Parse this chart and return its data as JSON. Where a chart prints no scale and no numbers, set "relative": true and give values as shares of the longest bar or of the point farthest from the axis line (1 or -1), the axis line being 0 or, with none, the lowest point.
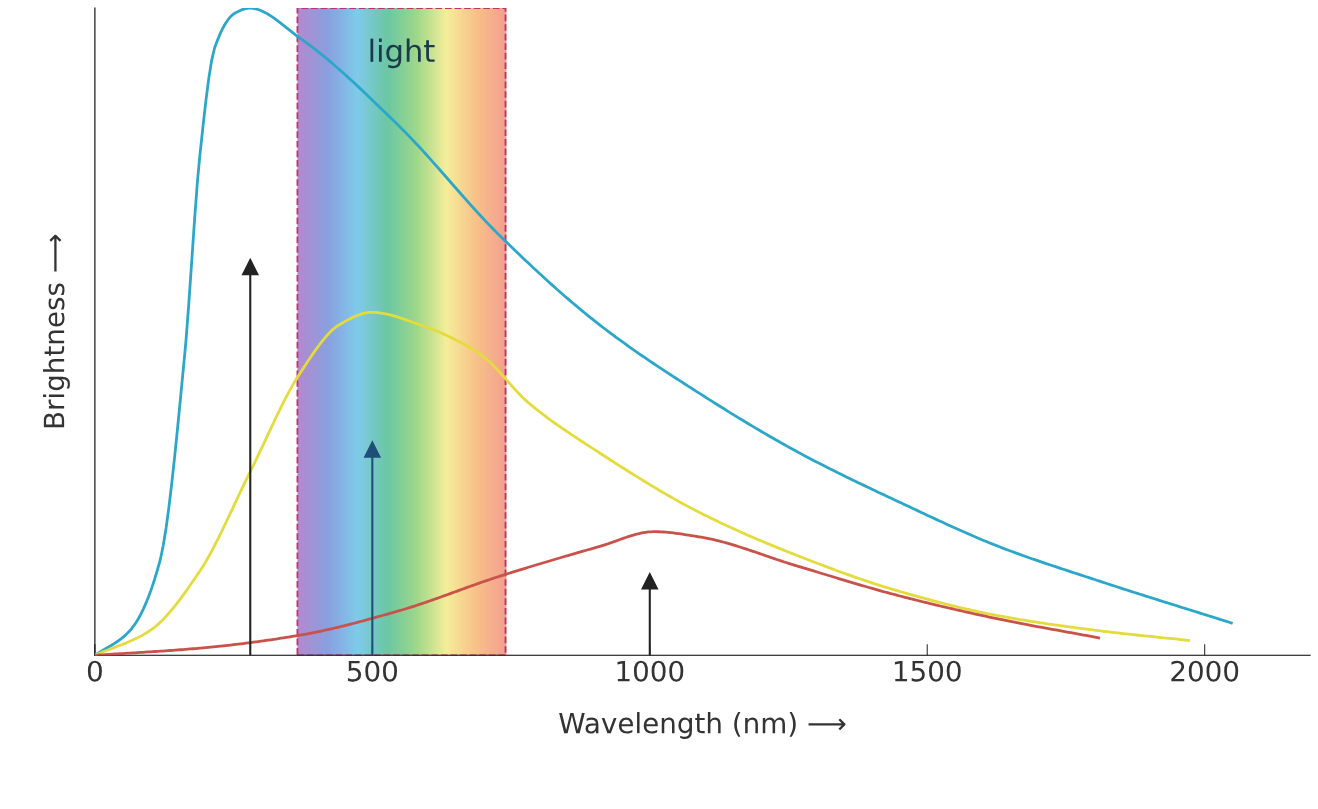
{
  "chart_data": {
    "type": "line",
    "relative": true,
    "xlabel": "Wavelength (nm) ⟶",
    "ylabel": "Brightness ⟶",
    "xlim": [
      0,
      2190
    ],
    "xticks": [
      0,
      500,
      1000,
      1500,
      2000
    ],
    "grid": false,
    "marker": "none",
    "line_style": "solid",
    "series": [
      {
        "color": "#2aa7c9",
        "x": [
          0,
          63,
          117,
          162,
          189,
          216,
          252,
          279,
          369,
          549,
          729,
          909,
          1089,
          1269,
          1449,
          1629,
          1809,
          2048
        ],
        "values": [
          0,
          0.038,
          0.145,
          0.466,
          0.771,
          0.939,
          0.992,
          1.0,
          0.954,
          0.817,
          0.649,
          0.511,
          0.405,
          0.313,
          0.237,
          0.168,
          0.115,
          0.05
        ]
      },
      {
        "color": "#e3dc3c",
        "x": [
          0,
          99,
          189,
          279,
          369,
          441,
          499,
          585,
          693,
          783,
          909,
          1089,
          1269,
          1449,
          1629,
          1809,
          1971
        ],
        "values": [
          0,
          0.038,
          0.13,
          0.282,
          0.435,
          0.511,
          0.53,
          0.511,
          0.466,
          0.389,
          0.313,
          0.221,
          0.153,
          0.099,
          0.061,
          0.038,
          0.023
        ]
      },
      {
        "color": "#c9524a",
        "x": [
          0,
          189,
          369,
          549,
          729,
          909,
          1008,
          1089,
          1269,
          1449,
          1629,
          1809
        ],
        "values": [
          0,
          0.011,
          0.031,
          0.069,
          0.122,
          0.168,
          0.191,
          0.183,
          0.137,
          0.092,
          0.056,
          0.027
        ]
      }
    ],
    "bands": [
      {
        "axis": "x",
        "from": 365,
        "to": 740,
        "label": "light",
        "color": "#c0326a"
      }
    ],
    "ref_lines": [
      {
        "axis": "x",
        "value": 280,
        "color": "#222222"
      },
      {
        "axis": "x",
        "value": 500,
        "color": "#1f4e79"
      },
      {
        "axis": "x",
        "value": 1000,
        "color": "#222222"
      }
    ]
  }
}
